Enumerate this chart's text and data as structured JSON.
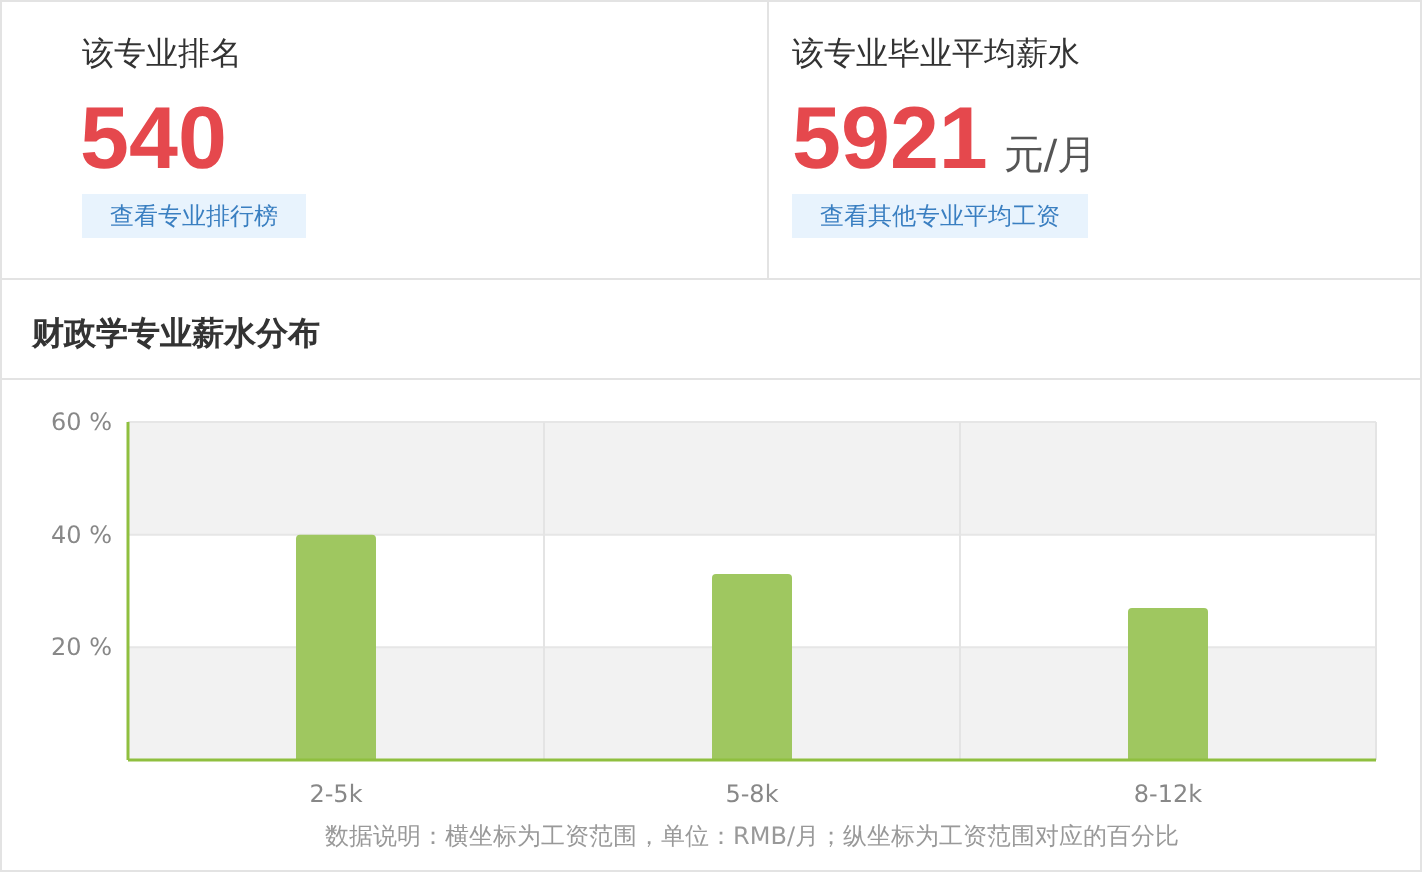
{
  "chart_data": [
    {
      "type": "other",
      "annotations": [
        "该专业排名",
        "540",
        "查看专业排行榜",
        "该专业毕业平均薪水",
        "5921",
        "元/月",
        "查看其他专业平均工资"
      ]
    },
    {
      "type": "bar",
      "title": "财政学专业薪水分布",
      "categories": [
        "2-5k",
        "5-8k",
        "8-12k"
      ],
      "values": [
        40,
        33,
        27
      ],
      "color": "#9fc760",
      "ylim": [
        0,
        60
      ],
      "yticks": [
        {
          "value": 0,
          "label": null
        },
        {
          "value": 20,
          "label": "20 %"
        },
        {
          "value": 40,
          "label": "40 %"
        },
        {
          "value": 60,
          "label": "60 %"
        }
      ],
      "grid": "y",
      "annotations": [
        "数据说明：横坐标为工资范围，单位：RMB/月；纵坐标为工资范围对应的百分比"
      ]
    }
  ]
}
